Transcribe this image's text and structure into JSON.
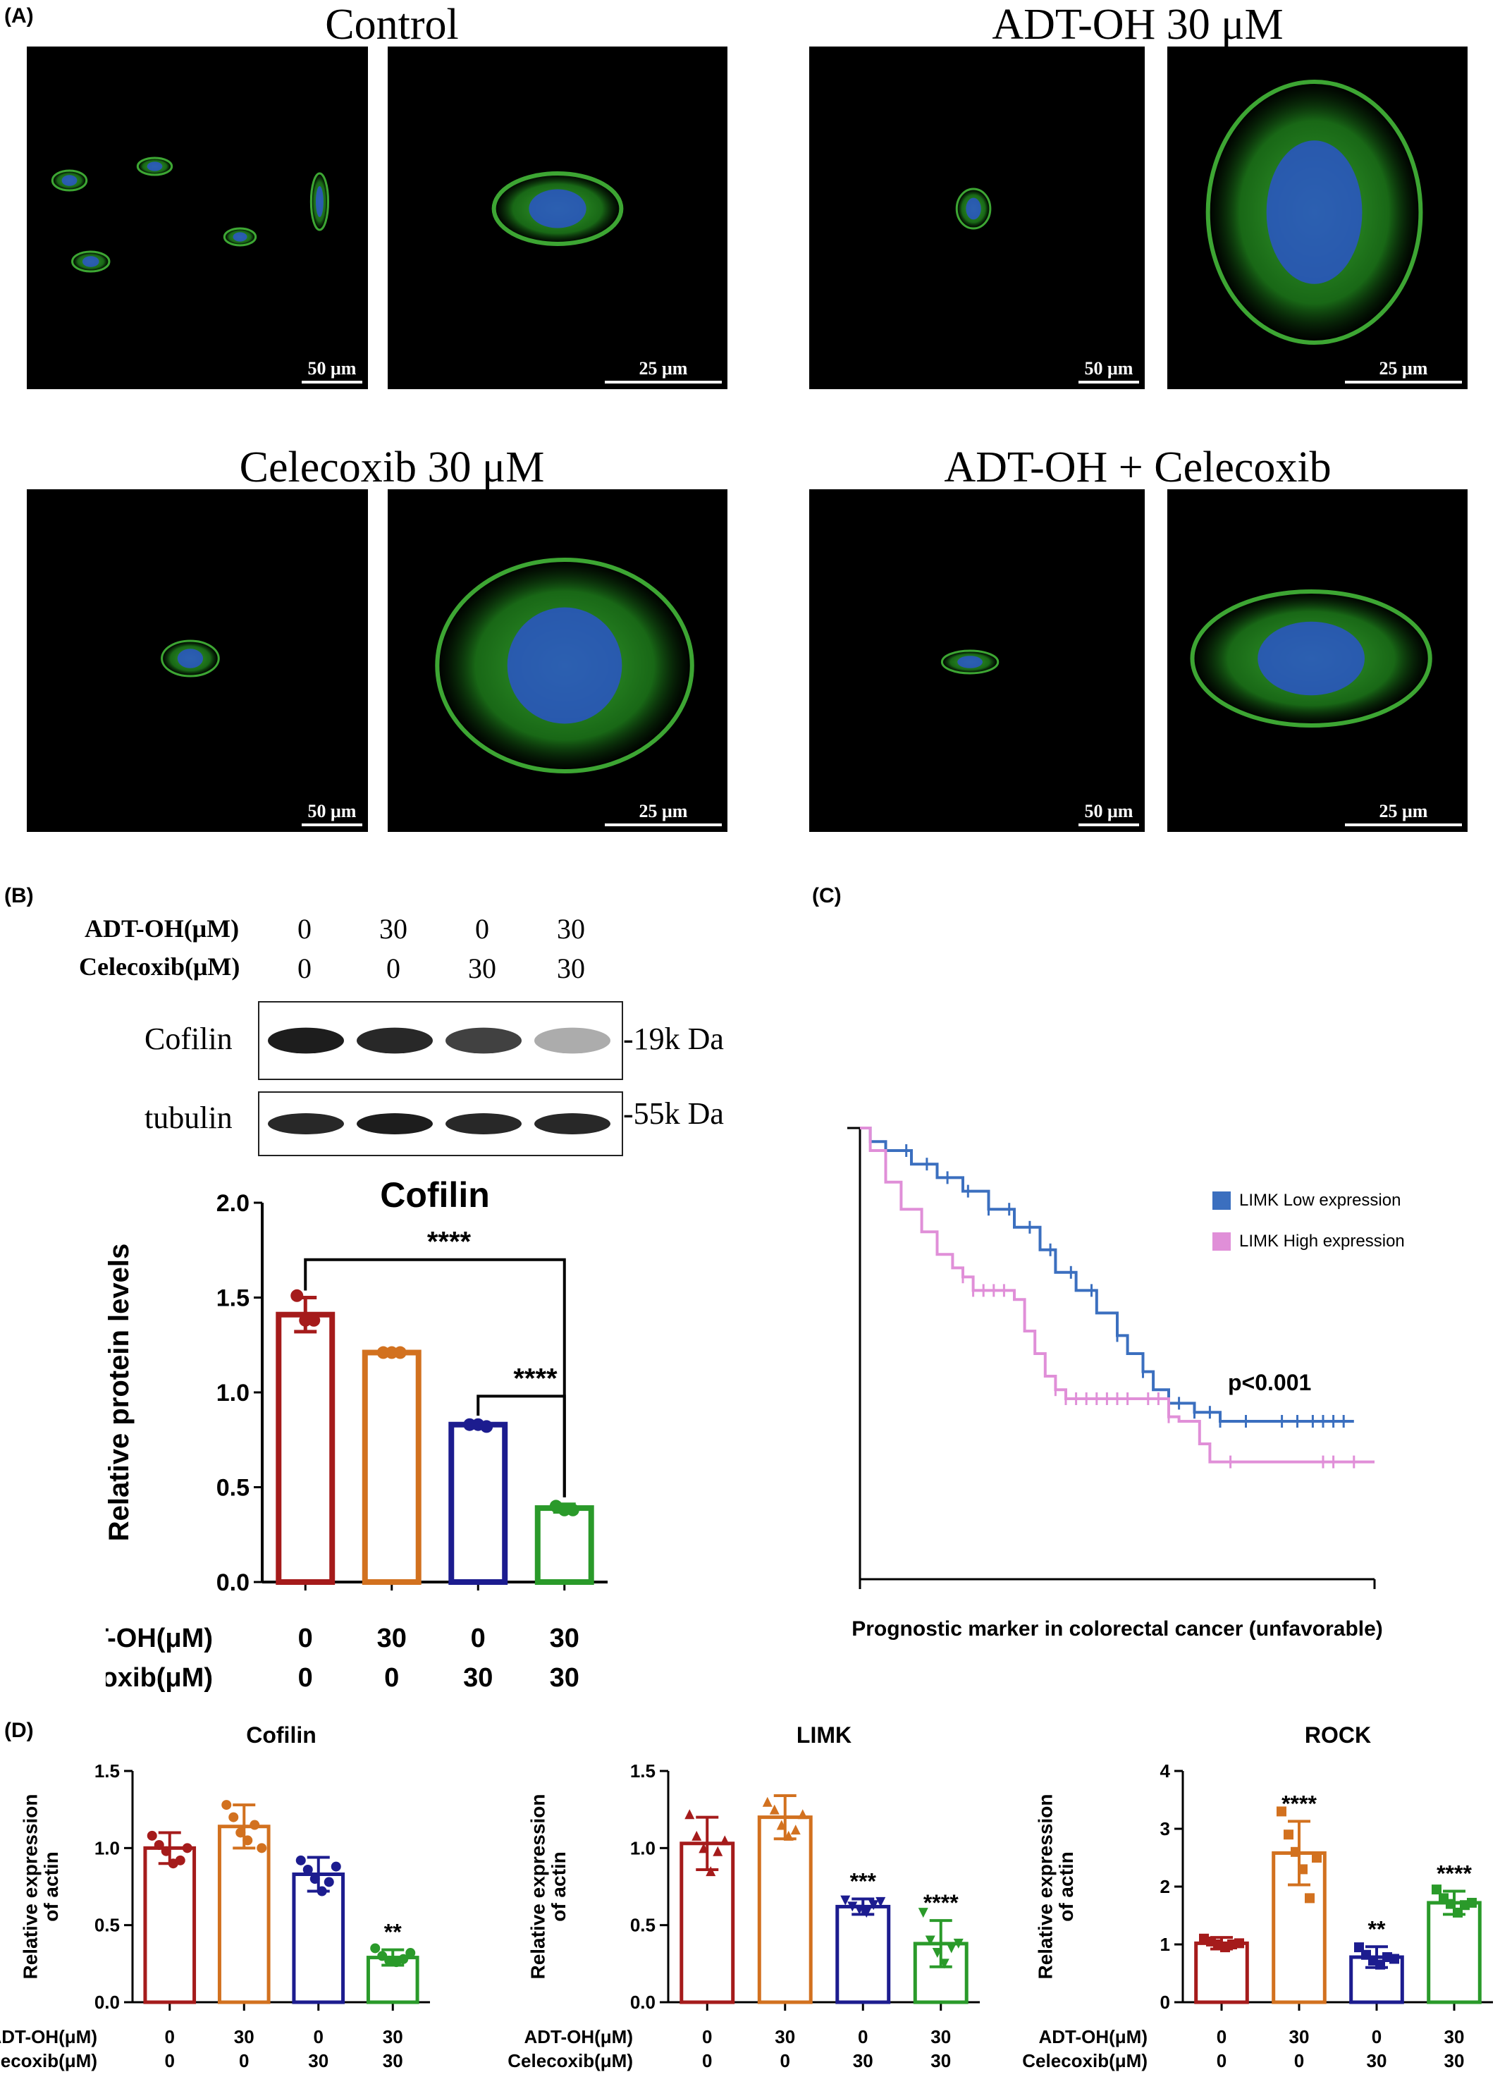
{
  "panels": {
    "a": "(A)",
    "b": "(B)",
    "c": "(C)",
    "d": "(D)"
  },
  "micrographs": {
    "control": {
      "title": "Control",
      "scale_wide": "50 μm",
      "scale_zoom": "25 μm"
    },
    "adt": {
      "title": "ADT-OH 30 μM",
      "scale_wide": "50 μm",
      "scale_zoom": "25 μm"
    },
    "celecoxib": {
      "title": "Celecoxib 30 μM",
      "scale_wide": "50 μm",
      "scale_zoom": "25 μm"
    },
    "combo": {
      "title": "ADT-OH + Celecoxib",
      "scale_wide": "50 μm",
      "scale_zoom": "25 μm"
    }
  },
  "western": {
    "row1_label": "ADT-OH(μM)",
    "row2_label": "Celecoxib(μM)",
    "row1_values": [
      "0",
      "30",
      "0",
      "30"
    ],
    "row2_values": [
      "0",
      "0",
      "30",
      "30"
    ],
    "band1": "Cofilin",
    "band1_size": "-19k Da",
    "band2": "tubulin",
    "band2_size": "-55k Da",
    "band1_intensity": [
      0.95,
      0.9,
      0.8,
      0.35
    ],
    "band2_intensity": [
      0.9,
      0.95,
      0.9,
      0.9
    ]
  },
  "colors": {
    "red": "#a51b1b",
    "orange": "#d2711f",
    "blue": "#1c1c8f",
    "green": "#2a9a2a",
    "km_low": "#3b6fbf",
    "km_high": "#e08fd8"
  },
  "chart_data": [
    {
      "id": "b",
      "type": "bar",
      "title": "Cofilin",
      "ylabel": "Relative protein levels",
      "ylim": [
        0,
        2.0
      ],
      "yticks": [
        "0.0",
        "0.5",
        "1.0",
        "1.5",
        "2.0"
      ],
      "row1_label": "ADT-OH(μM)",
      "row2_label": "Celecoxib(μM)",
      "row1": [
        "0",
        "30",
        "0",
        "30"
      ],
      "row2": [
        "0",
        "0",
        "30",
        "30"
      ],
      "values": [
        1.41,
        1.21,
        0.83,
        0.39
      ],
      "errors": [
        0.09,
        0.01,
        0.01,
        0.02
      ],
      "points": [
        [
          1.51,
          1.38,
          1.38
        ],
        [
          1.21,
          1.21,
          1.21
        ],
        [
          0.83,
          0.83,
          0.82
        ],
        [
          0.4,
          0.38,
          0.38
        ]
      ],
      "sig": [
        {
          "from": 0,
          "to": 3,
          "label": "****",
          "y": 1.7
        },
        {
          "from": 2,
          "to": 3,
          "label": "****",
          "y": 0.98
        }
      ]
    },
    {
      "id": "c",
      "type": "line",
      "xlabel": "Prognostic marker in colorectal cancer (unfavorable)",
      "xlim": [
        0,
        1
      ],
      "ylim": [
        0,
        1
      ],
      "annotation": "p<0.001",
      "series": [
        {
          "name": "LIMK Low expression",
          "x": [
            0,
            0.02,
            0.05,
            0.1,
            0.15,
            0.2,
            0.25,
            0.3,
            0.35,
            0.38,
            0.42,
            0.46,
            0.5,
            0.52,
            0.55,
            0.57,
            0.6,
            0.65,
            0.7,
            0.75,
            0.8,
            0.85,
            0.95
          ],
          "y": [
            1.0,
            0.97,
            0.95,
            0.92,
            0.89,
            0.86,
            0.82,
            0.78,
            0.73,
            0.68,
            0.64,
            0.59,
            0.54,
            0.5,
            0.46,
            0.42,
            0.39,
            0.37,
            0.35,
            0.35,
            0.35,
            0.35,
            0.35
          ],
          "censor_x": [
            0.05,
            0.09,
            0.13,
            0.17,
            0.21,
            0.25,
            0.29,
            0.33,
            0.37,
            0.41,
            0.45,
            0.5,
            0.55,
            0.6,
            0.62,
            0.65,
            0.68,
            0.7,
            0.75,
            0.82,
            0.85,
            0.88,
            0.9,
            0.92,
            0.94
          ]
        },
        {
          "name": "LIMK High expression",
          "x": [
            0,
            0.02,
            0.05,
            0.08,
            0.12,
            0.15,
            0.18,
            0.2,
            0.22,
            0.25,
            0.28,
            0.3,
            0.32,
            0.34,
            0.36,
            0.38,
            0.4,
            0.55,
            0.6,
            0.62,
            0.66,
            0.68,
            0.72,
            1.0
          ],
          "y": [
            1.0,
            0.95,
            0.88,
            0.82,
            0.77,
            0.72,
            0.69,
            0.67,
            0.64,
            0.64,
            0.64,
            0.62,
            0.55,
            0.5,
            0.45,
            0.42,
            0.4,
            0.4,
            0.36,
            0.35,
            0.3,
            0.26,
            0.26,
            0.26
          ],
          "censor_x": [
            0.2,
            0.22,
            0.24,
            0.26,
            0.28,
            0.38,
            0.4,
            0.42,
            0.44,
            0.46,
            0.48,
            0.5,
            0.52,
            0.56,
            0.58,
            0.6,
            0.72,
            0.9,
            0.92,
            0.96
          ]
        }
      ]
    },
    {
      "id": "d1",
      "type": "bar",
      "title": "Cofilin",
      "ylabel": "Relative expression of actin",
      "ylim": [
        0,
        1.5
      ],
      "yticks": [
        "0.0",
        "0.5",
        "1.0",
        "1.5"
      ],
      "row1_label": "ADT-OH(μM)",
      "row2_label": "Celecoxib(μM)",
      "row1": [
        "0",
        "30",
        "0",
        "30"
      ],
      "row2": [
        "0",
        "0",
        "30",
        "30"
      ],
      "values": [
        1.0,
        1.14,
        0.83,
        0.29
      ],
      "errors": [
        0.1,
        0.14,
        0.11,
        0.05
      ],
      "points": [
        [
          1.08,
          1.02,
          0.98,
          0.9,
          0.92,
          1.0
        ],
        [
          1.28,
          1.2,
          1.1,
          1.05,
          1.15,
          1.0
        ],
        [
          0.92,
          0.86,
          0.8,
          0.72,
          0.78,
          0.88
        ],
        [
          0.35,
          0.3,
          0.27,
          0.26,
          0.28,
          0.32
        ]
      ],
      "marker": "circle",
      "stars": [
        "",
        "",
        "",
        "**"
      ]
    },
    {
      "id": "d2",
      "type": "bar",
      "title": "LIMK",
      "ylabel": "Relative expression of actin",
      "ylim": [
        0,
        1.5
      ],
      "yticks": [
        "0.0",
        "0.5",
        "1.0",
        "1.5"
      ],
      "row1_label": "ADT-OH(μM)",
      "row2_label": "Celecoxib(μM)",
      "row1": [
        "0",
        "30",
        "0",
        "30"
      ],
      "row2": [
        "0",
        "0",
        "30",
        "30"
      ],
      "values": [
        1.03,
        1.2,
        0.62,
        0.38
      ],
      "errors": [
        0.17,
        0.14,
        0.05,
        0.15
      ],
      "points": [
        [
          1.22,
          1.08,
          1.0,
          0.85,
          0.98,
          1.05
        ],
        [
          1.3,
          1.25,
          1.15,
          1.08,
          1.12,
          1.22
        ],
        [
          0.66,
          0.62,
          0.6,
          0.58,
          0.63,
          0.65
        ],
        [
          0.58,
          0.4,
          0.32,
          0.25,
          0.35,
          0.38
        ]
      ],
      "marker": "triangle",
      "stars": [
        "",
        "",
        "***",
        "****"
      ]
    },
    {
      "id": "d3",
      "type": "bar",
      "title": "ROCK",
      "ylabel": "Relative expression of actin",
      "ylim": [
        0,
        4
      ],
      "yticks": [
        "0",
        "1",
        "2",
        "3",
        "4"
      ],
      "row1_label": "ADT-OH(μM)",
      "row2_label": "Celecoxib(μM)",
      "row1": [
        "0",
        "30",
        "0",
        "30"
      ],
      "row2": [
        "0",
        "0",
        "30",
        "30"
      ],
      "values": [
        1.02,
        2.58,
        0.78,
        1.72
      ],
      "errors": [
        0.1,
        0.55,
        0.18,
        0.2
      ],
      "points": [
        [
          1.1,
          1.05,
          1.0,
          0.95,
          1.0,
          1.02
        ],
        [
          3.3,
          2.9,
          2.6,
          2.3,
          1.8,
          2.5
        ],
        [
          0.95,
          0.82,
          0.72,
          0.65,
          0.78,
          0.75
        ],
        [
          1.95,
          1.8,
          1.7,
          1.55,
          1.68,
          1.72
        ]
      ],
      "marker": "square",
      "stars": [
        "",
        "****",
        "**",
        "****"
      ]
    }
  ]
}
